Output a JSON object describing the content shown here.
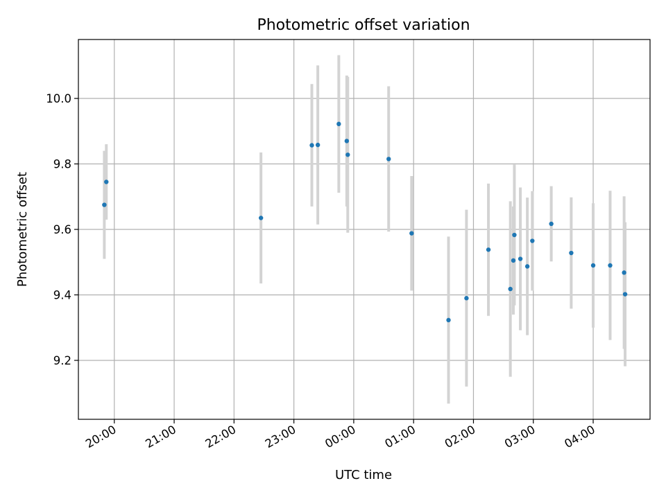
{
  "chart_data": {
    "type": "scatter",
    "title": "Photometric offset variation",
    "xlabel": "UTC time",
    "ylabel": "Photometric offset",
    "x_unit": "hours",
    "xlim": [
      "19:24",
      "04:57"
    ],
    "ylim": [
      9.02,
      10.18
    ],
    "x_ticks": [
      "20:00",
      "21:00",
      "22:00",
      "23:00",
      "00:00",
      "01:00",
      "02:00",
      "03:00",
      "04:00"
    ],
    "y_ticks": [
      9.2,
      9.4,
      9.6,
      9.8,
      10.0
    ],
    "y_tick_labels": [
      "9.2",
      "9.4",
      "9.6",
      "9.8",
      "10.0"
    ],
    "grid": true,
    "marker_color": "#1f77b4",
    "errorbar_color": "#d3d3d3",
    "points": [
      {
        "t": "19:50",
        "y": 9.675,
        "err": 0.165
      },
      {
        "t": "19:52",
        "y": 9.745,
        "err": 0.115
      },
      {
        "t": "22:27",
        "y": 9.635,
        "err": 0.2
      },
      {
        "t": "23:18",
        "y": 9.857,
        "err": 0.187
      },
      {
        "t": "23:24",
        "y": 9.858,
        "err": 0.243
      },
      {
        "t": "23:45",
        "y": 9.922,
        "err": 0.21
      },
      {
        "t": "23:53",
        "y": 9.87,
        "err": 0.2
      },
      {
        "t": "23:54",
        "y": 9.828,
        "err": 0.238
      },
      {
        "t": "00:35",
        "y": 9.815,
        "err": 0.222
      },
      {
        "t": "00:58",
        "y": 9.588,
        "err": 0.175
      },
      {
        "t": "01:35",
        "y": 9.323,
        "err": 0.255
      },
      {
        "t": "01:53",
        "y": 9.39,
        "err": 0.27
      },
      {
        "t": "02:15",
        "y": 9.538,
        "err": 0.202
      },
      {
        "t": "02:37",
        "y": 9.418,
        "err": 0.268
      },
      {
        "t": "02:40",
        "y": 9.505,
        "err": 0.165
      },
      {
        "t": "02:41",
        "y": 9.583,
        "err": 0.215
      },
      {
        "t": "02:47",
        "y": 9.51,
        "err": 0.218
      },
      {
        "t": "02:54",
        "y": 9.487,
        "err": 0.21
      },
      {
        "t": "02:59",
        "y": 9.565,
        "err": 0.152
      },
      {
        "t": "03:18",
        "y": 9.617,
        "err": 0.115
      },
      {
        "t": "03:38",
        "y": 9.528,
        "err": 0.17
      },
      {
        "t": "04:00",
        "y": 9.49,
        "err": 0.19
      },
      {
        "t": "04:17",
        "y": 9.49,
        "err": 0.228
      },
      {
        "t": "04:31",
        "y": 9.468,
        "err": 0.233
      },
      {
        "t": "04:32",
        "y": 9.402,
        "err": 0.22
      }
    ]
  }
}
